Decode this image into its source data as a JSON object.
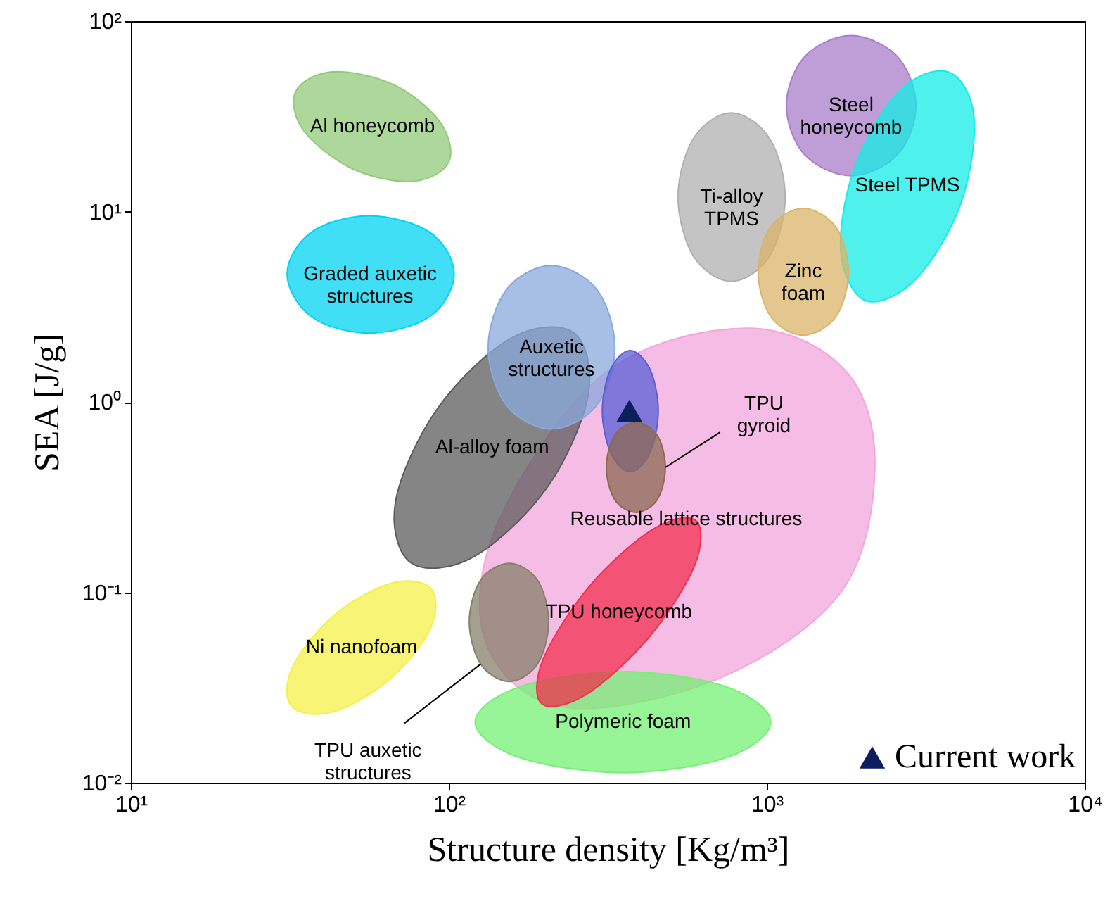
{
  "chart_data": {
    "type": "area",
    "xlabel": "Structure density [Kg/m³]",
    "ylabel": "SEA [J/g]",
    "log": "xy",
    "grid": false,
    "legend": "bottom right",
    "xlim": [
      10,
      10000
    ],
    "ylim": [
      0.01,
      100
    ],
    "xticks": [
      {
        "value": 10,
        "label": "10¹"
      },
      {
        "value": 100,
        "label": "10²"
      },
      {
        "value": 1000,
        "label": "10³"
      },
      {
        "value": 10000,
        "label": "10⁴"
      }
    ],
    "yticks": [
      {
        "value": 0.01,
        "label": "10⁻²"
      },
      {
        "value": 0.1,
        "label": "10⁻¹"
      },
      {
        "value": 1,
        "label": "10⁰"
      },
      {
        "value": 10,
        "label": "10¹"
      },
      {
        "value": 100,
        "label": "10²"
      }
    ],
    "annotations": [
      {
        "text": "TPU gyroid",
        "x": 480,
        "y": 0.453
      },
      {
        "text": "TPU auxetic structures",
        "x": 126,
        "y": 0.042
      }
    ],
    "series": [
      {
        "name": "Al honeycomb",
        "color": "#93c97a",
        "x": [
          100,
          77,
          50,
          35,
          33,
          43,
          67,
          94
        ],
        "values": [
          18.2,
          14.4,
          16.7,
          26.5,
          42.7,
          54.2,
          46.4,
          29.4
        ]
      },
      {
        "name": "Graded auxetic structures",
        "color": "#00d4f2",
        "x": [
          104,
          87,
          56,
          37,
          31,
          37,
          56,
          87
        ],
        "values": [
          4.7,
          2.8,
          2.3,
          2.8,
          4.7,
          7.8,
          9.5,
          7.8
        ]
      },
      {
        "name": "Ti-alloy TPMS",
        "color": "#b0b0b0",
        "x": [
          1143,
          1020,
          774,
          589,
          526,
          589,
          774,
          1020
        ],
        "values": [
          11.9,
          5.8,
          4.3,
          5.8,
          11.9,
          24.3,
          33,
          24.3
        ]
      },
      {
        "name": "Steel honeycomb",
        "color": "#a97ec9",
        "x": [
          2946,
          2580,
          1842,
          1315,
          1153,
          1315,
          1842,
          2580
        ],
        "values": [
          36,
          19.9,
          15.4,
          19.9,
          36,
          65,
          84,
          65
        ]
      },
      {
        "name": "Steel TPMS",
        "color": "#14ece6",
        "x": [
          4060,
          2940,
          2050,
          1710,
          1890,
          2610,
          3740,
          4490
        ],
        "values": [
          10.8,
          4.4,
          3.4,
          6.1,
          17,
          43,
          54,
          31
        ]
      },
      {
        "name": "Zinc foam",
        "color": "#dab46a",
        "x": [
          1807,
          1650,
          1302,
          1030,
          940,
          1030,
          1302,
          1650
        ],
        "values": [
          4.83,
          2.8,
          2.24,
          2.8,
          4.83,
          8.3,
          10.4,
          8.3
        ]
      },
      {
        "name": "Reusable lattice structures",
        "color": "#f2a6dc",
        "x": [
          859,
          1750,
          2190,
          1717,
          700,
          228,
          130,
          144,
          310
        ],
        "values": [
          2.44,
          1.49,
          0.47,
          0.101,
          0.035,
          0.025,
          0.056,
          0.24,
          1.42
        ]
      },
      {
        "name": "Al-alloy foam",
        "color": "#5c5c5c",
        "x": [
          205,
          120,
          76,
          68,
          92,
          156,
          246,
          275
        ],
        "values": [
          0.36,
          0.154,
          0.143,
          0.3,
          0.92,
          2.15,
          2.32,
          1.11
        ]
      },
      {
        "name": "Auxetic structures",
        "color": "#8aa8dc",
        "x": [
          333,
          292,
          210,
          152,
          133,
          152,
          210,
          292
        ],
        "values": [
          1.93,
          0.96,
          0.72,
          0.96,
          1.93,
          3.9,
          5.2,
          3.9
        ]
      },
      {
        "name": "Polymeric foam",
        "color": "#74f074",
        "x": [
          1030,
          751,
          354,
          166,
          121,
          166,
          354,
          751
        ],
        "values": [
          0.0208,
          0.0136,
          0.0113,
          0.0136,
          0.0208,
          0.0318,
          0.0384,
          0.0318
        ]
      },
      {
        "color": "#5a5fd6",
        "x": [
          456,
          429,
          372,
          323,
          304,
          323,
          372,
          429
        ],
        "values": [
          0.9,
          0.54,
          0.43,
          0.54,
          0.9,
          1.49,
          1.86,
          1.49
        ]
      },
      {
        "color": "#8c6a52",
        "x": [
          480,
          452,
          388,
          333,
          313,
          333,
          388,
          452
        ],
        "values": [
          0.453,
          0.306,
          0.263,
          0.306,
          0.453,
          0.67,
          0.78,
          0.67
        ]
      },
      {
        "name": "TPU honeycomb",
        "color": "#f2304e",
        "x": [
          599,
          593,
          426,
          270,
          196,
          198,
          276,
          436
        ],
        "values": [
          0.238,
          0.138,
          0.058,
          0.029,
          0.026,
          0.0445,
          0.107,
          0.213
        ]
      },
      {
        "color": "#85806a",
        "x": [
          206,
          190,
          155,
          126,
          116,
          126,
          155,
          190
        ],
        "values": [
          0.07,
          0.042,
          0.034,
          0.042,
          0.07,
          0.116,
          0.142,
          0.116
        ]
      },
      {
        "name": "Ni nanofoam",
        "color": "#f4f048",
        "x": [
          88,
          87.5,
          65,
          43,
          32,
          32.3,
          43.6,
          66
        ],
        "values": [
          0.1045,
          0.0644,
          0.0347,
          0.0235,
          0.0252,
          0.0408,
          0.0759,
          0.1117
        ]
      },
      {
        "name": "Current work",
        "type": "scatter",
        "marker": "triangle",
        "color": "#0b1f5c",
        "x": [
          370
        ],
        "values": [
          0.9
        ]
      }
    ]
  }
}
